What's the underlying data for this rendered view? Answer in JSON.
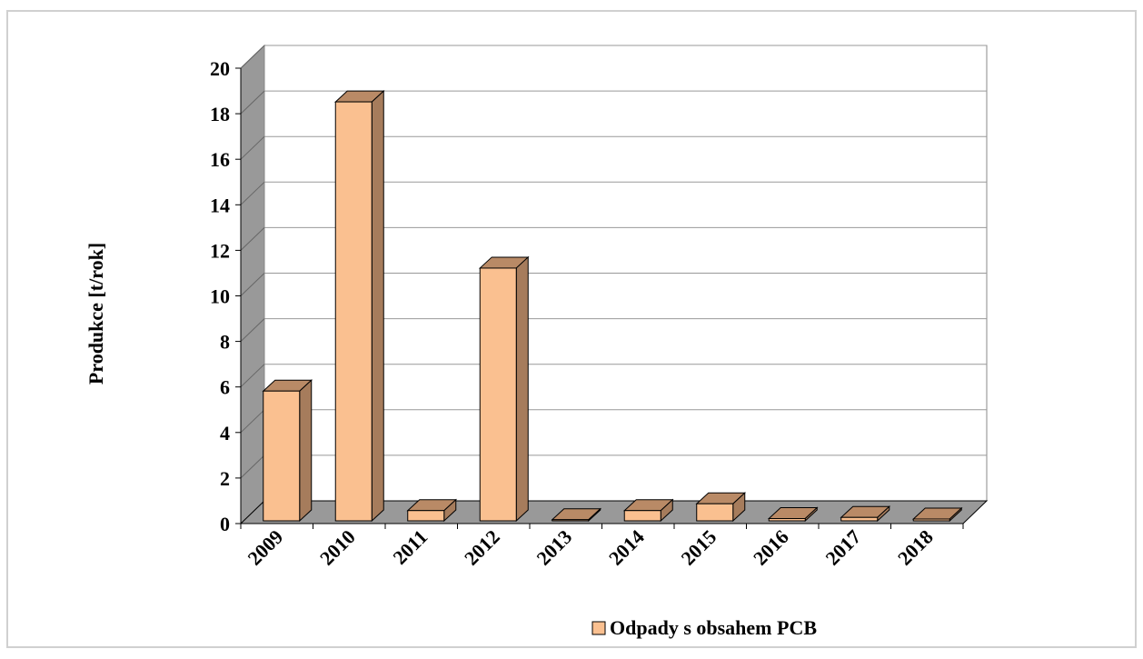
{
  "chart_data": {
    "type": "bar3d",
    "y_label": "Produkce [t/rok]",
    "categories": [
      "2009",
      "2010",
      "2011",
      "2012",
      "2013",
      "2014",
      "2015",
      "2016",
      "2017",
      "2018"
    ],
    "series": [
      {
        "name": "Odpady s obsahem PCB",
        "color": "#fac090",
        "values": [
          5.7,
          18.4,
          0.45,
          11.1,
          0.05,
          0.45,
          0.75,
          0.1,
          0.15,
          0.08
        ]
      }
    ],
    "ylim": [
      0,
      20
    ],
    "yticks": [
      0,
      2,
      4,
      6,
      8,
      10,
      12,
      14,
      16,
      18,
      20
    ],
    "grid": true
  }
}
